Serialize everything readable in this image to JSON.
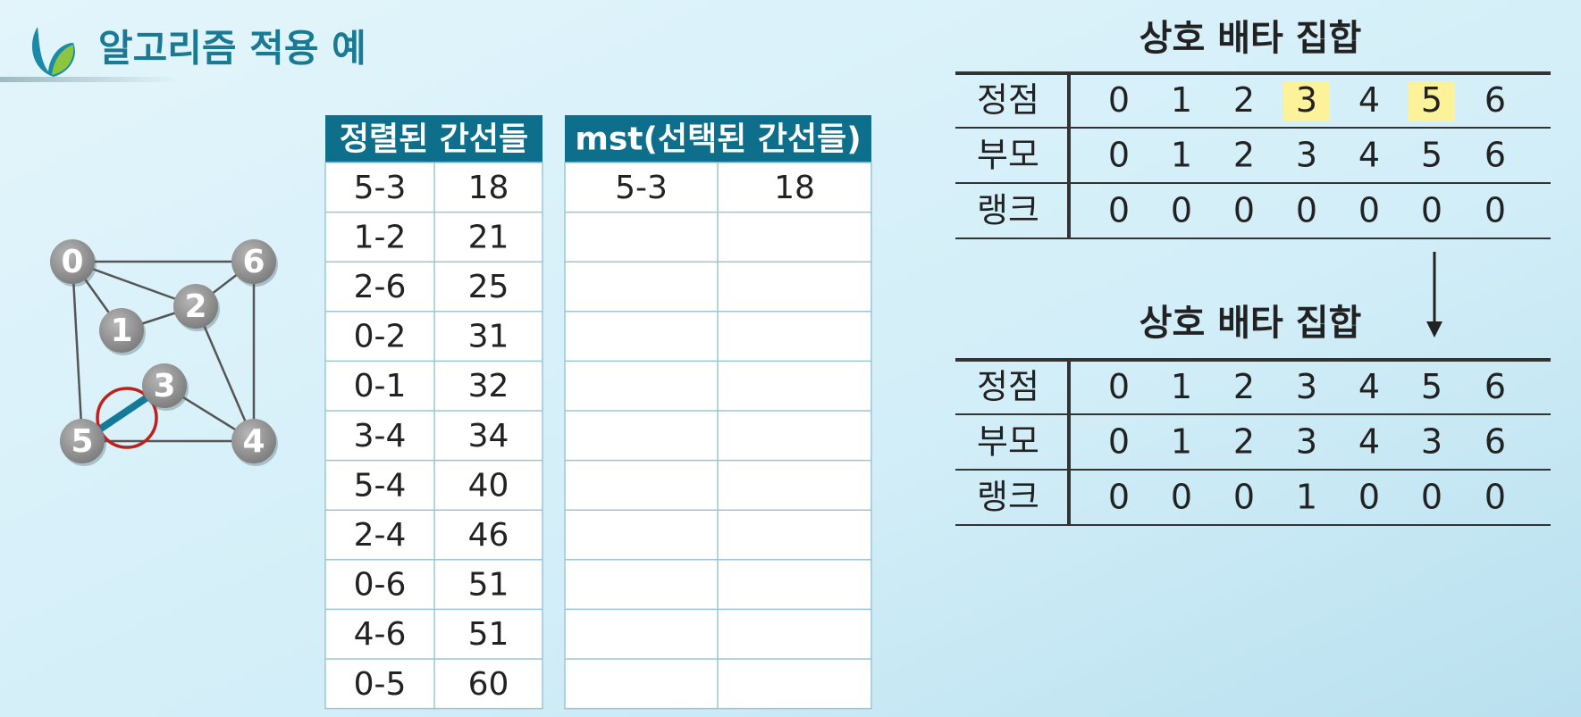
{
  "title": "알고리즘 적용 예",
  "graph": {
    "nodes": [
      "0",
      "1",
      "2",
      "3",
      "4",
      "5",
      "6"
    ]
  },
  "sorted_edges": {
    "header": "정렬된 간선들",
    "rows": [
      [
        "5-3",
        18
      ],
      [
        "1-2",
        21
      ],
      [
        "2-6",
        25
      ],
      [
        "0-2",
        31
      ],
      [
        "0-1",
        32
      ],
      [
        "3-4",
        34
      ],
      [
        "5-4",
        40
      ],
      [
        "2-4",
        46
      ],
      [
        "0-6",
        51
      ],
      [
        "4-6",
        51
      ],
      [
        "0-5",
        60
      ]
    ]
  },
  "mst": {
    "header": "mst(선택된 간선들)",
    "rows": [
      [
        "5-3",
        18
      ]
    ]
  },
  "sets_before": {
    "title": "상호 배타 집합",
    "row_labels": [
      "정점",
      "부모",
      "랭크"
    ],
    "rows": [
      [
        0,
        1,
        2,
        3,
        4,
        5,
        6
      ],
      [
        0,
        1,
        2,
        3,
        4,
        5,
        6
      ],
      [
        0,
        0,
        0,
        0,
        0,
        0,
        0
      ]
    ],
    "highlight": [
      3,
      5
    ]
  },
  "sets_after": {
    "title": "상호 배타 집합",
    "row_labels": [
      "정점",
      "부모",
      "랭크"
    ],
    "rows": [
      [
        0,
        1,
        2,
        3,
        4,
        5,
        6
      ],
      [
        0,
        1,
        2,
        3,
        4,
        3,
        6
      ],
      [
        0,
        0,
        0,
        1,
        0,
        0,
        0
      ]
    ]
  }
}
